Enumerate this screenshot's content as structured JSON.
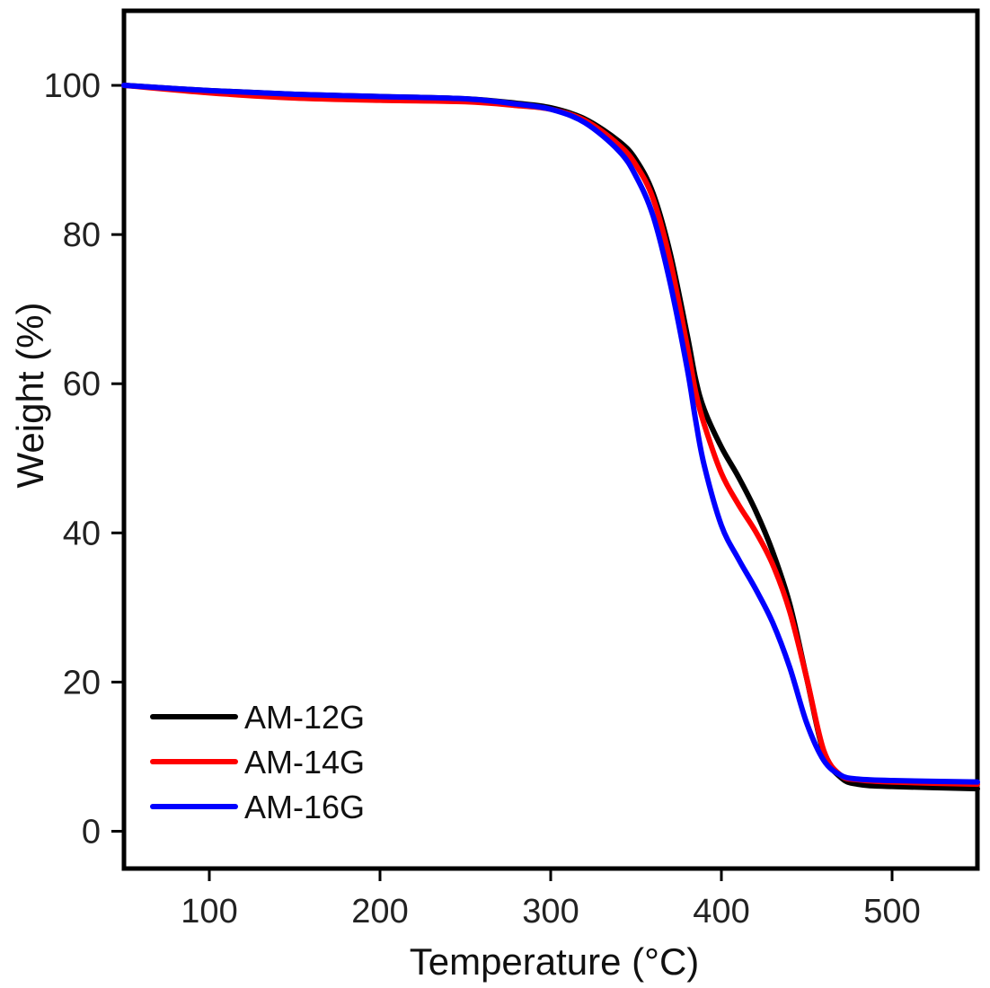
{
  "chart_data": {
    "type": "line",
    "title": "",
    "xlabel": "Temperature (°C)",
    "ylabel": "Weight (%)",
    "xlim": [
      50,
      550
    ],
    "ylim": [
      -5,
      110
    ],
    "xticks": [
      100,
      200,
      300,
      400,
      500
    ],
    "yticks": [
      0,
      20,
      40,
      60,
      80,
      100
    ],
    "grid": false,
    "legend_position": "bottom-left",
    "series": [
      {
        "name": "AM-12G",
        "color": "#000000",
        "x": [
          50,
          100,
          150,
          200,
          250,
          280,
          300,
          320,
          340,
          350,
          360,
          370,
          380,
          385,
          390,
          400,
          410,
          420,
          430,
          440,
          450,
          460,
          470,
          480,
          500,
          550
        ],
        "y": [
          100,
          99.3,
          98.8,
          98.5,
          98.2,
          97.6,
          97.0,
          95.5,
          92.5,
          90.0,
          85.5,
          77.5,
          66.5,
          60.5,
          56.5,
          51.5,
          47.5,
          43.0,
          37.5,
          30.5,
          20.5,
          10.5,
          7.2,
          6.3,
          6.0,
          5.7
        ]
      },
      {
        "name": "AM-14G",
        "color": "#ff0000",
        "x": [
          50,
          100,
          150,
          200,
          250,
          280,
          300,
          320,
          340,
          350,
          360,
          370,
          380,
          385,
          390,
          400,
          410,
          420,
          430,
          440,
          450,
          460,
          470,
          480,
          500,
          550
        ],
        "y": [
          100,
          99.0,
          98.3,
          98.0,
          97.8,
          97.3,
          96.8,
          95.3,
          92.0,
          89.3,
          84.8,
          76.5,
          65.0,
          58.8,
          54.5,
          48.0,
          43.8,
          40.2,
          35.8,
          29.5,
          20.5,
          10.8,
          7.5,
          6.9,
          6.6,
          6.3
        ]
      },
      {
        "name": "AM-16G",
        "color": "#0000ff",
        "x": [
          50,
          100,
          150,
          200,
          250,
          280,
          300,
          320,
          340,
          350,
          360,
          370,
          380,
          385,
          390,
          400,
          410,
          420,
          430,
          440,
          450,
          460,
          470,
          480,
          500,
          550
        ],
        "y": [
          100,
          99.3,
          98.8,
          98.5,
          98.2,
          97.5,
          96.8,
          95.0,
          91.2,
          87.8,
          82.5,
          73.5,
          62.0,
          55.0,
          49.0,
          41.0,
          36.5,
          32.5,
          28.0,
          22.0,
          14.5,
          9.5,
          7.5,
          7.0,
          6.8,
          6.6
        ]
      }
    ]
  }
}
